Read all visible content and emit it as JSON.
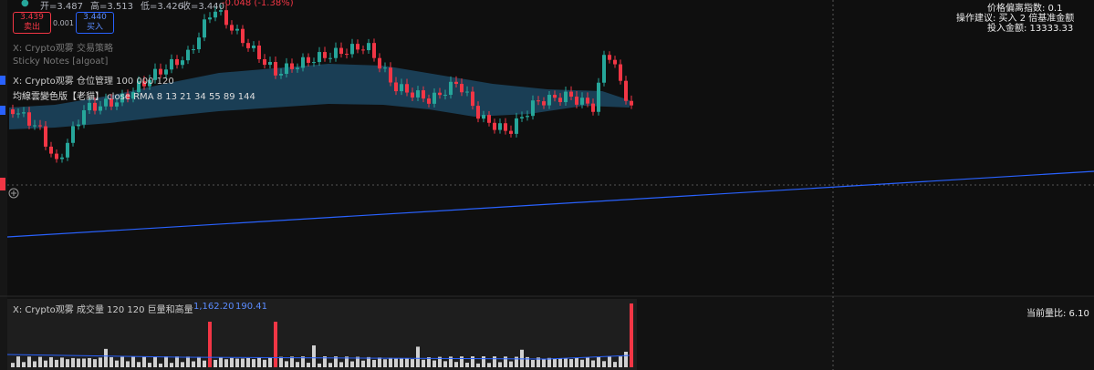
{
  "header": {
    "ohlc": [
      "开=3.487",
      "高=3.513",
      "低=3.426",
      "收=3.440"
    ],
    "change": "-0.048 (-1.38%)"
  },
  "trade": {
    "sell_price": "3.439",
    "sell_label": "卖出",
    "spread": "0.001",
    "buy_price": "3.440",
    "buy_label": "买入"
  },
  "indicators": [
    "X: Crypto观雾 交易策略",
    "Sticky Notes [algoat]",
    "X: Crypto观雾 仓位管理 100 000 120",
    "均線雲變色版【老貓】 close RMA 8 13 21 34 55 89 144"
  ],
  "info_panel": [
    "价格偏离指数: 0.1",
    "操作建议: 买入 2 倍基准金额",
    "投入金额: 13333.33"
  ],
  "volume_pane": {
    "title": "X: Crypto观雾 成交量 120 120 巨量和高量",
    "value_1": "1,162.20",
    "value_2": "190.41",
    "ratio": "当前量比: 6.10"
  }
}
